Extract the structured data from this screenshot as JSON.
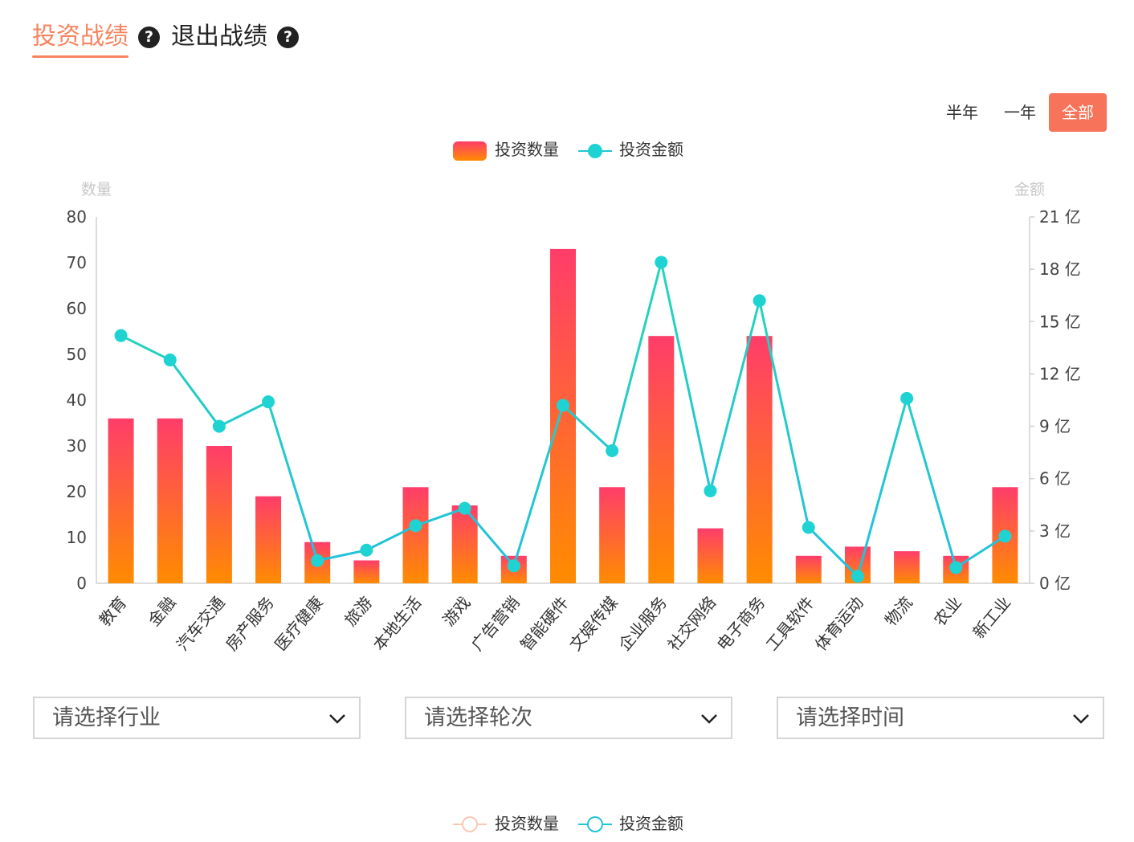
{
  "tabs": [
    {
      "label": "投资战绩",
      "active": true
    },
    {
      "label": "退出战绩",
      "active": false
    }
  ],
  "help_icon": "question-circle-icon",
  "periods": [
    {
      "label": "半年",
      "active": false
    },
    {
      "label": "一年",
      "active": false
    },
    {
      "label": "全部",
      "active": true
    }
  ],
  "chart_data": {
    "type": "bar+line",
    "categories": [
      "教育",
      "金融",
      "汽车交通",
      "房产服务",
      "医疗健康",
      "旅游",
      "本地生活",
      "游戏",
      "广告营销",
      "智能硬件",
      "文娱传媒",
      "企业服务",
      "社交网络",
      "电子商务",
      "工具软件",
      "体育运动",
      "物流",
      "农业",
      "新工业"
    ],
    "series": [
      {
        "name": "投资数量",
        "type": "bar",
        "axis": "left",
        "values": [
          36,
          36,
          30,
          19,
          9,
          5,
          21,
          17,
          6,
          73,
          21,
          54,
          12,
          54,
          6,
          8,
          7,
          6,
          21
        ]
      },
      {
        "name": "投资金额",
        "type": "line",
        "axis": "right",
        "values": [
          14.2,
          12.8,
          9.0,
          10.4,
          1.3,
          1.9,
          3.3,
          4.3,
          1.0,
          10.2,
          7.6,
          18.4,
          5.3,
          16.2,
          3.2,
          0.4,
          10.6,
          0.9,
          2.7
        ]
      }
    ],
    "ylabel_left": "数量",
    "ylabel_right": "金额",
    "ylim_left": [
      0,
      80
    ],
    "ylim_right": [
      0,
      21
    ],
    "yticks_left": [
      "0",
      "10",
      "20",
      "30",
      "40",
      "50",
      "60",
      "70",
      "80"
    ],
    "yticks_right": [
      "0 亿",
      "3 亿",
      "6 亿",
      "9 亿",
      "12 亿",
      "15 亿",
      "18 亿",
      "21 亿"
    ],
    "legend": [
      "投资数量",
      "投资金额"
    ],
    "legend_position": "top-center",
    "colors": {
      "bar_top": "#ff3d6a",
      "bar_bottom": "#ff8c00",
      "line": "#22c6d6",
      "line_marker": "#1fd3d3",
      "line_alt": "#24d6b8",
      "axis": "#d0d0d0"
    }
  },
  "filters": [
    {
      "placeholder": "请选择行业",
      "icon": "chevron-down-icon"
    },
    {
      "placeholder": "请选择轮次",
      "icon": "chevron-down-icon"
    },
    {
      "placeholder": "请选择时间",
      "icon": "chevron-down-icon"
    }
  ],
  "bottom_legend": [
    "投资数量",
    "投资金额"
  ]
}
